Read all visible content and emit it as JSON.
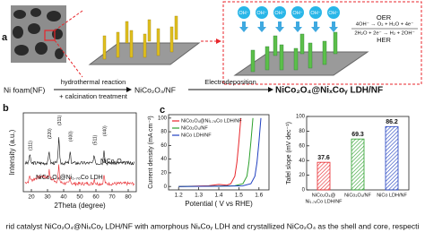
{
  "panel_a": {
    "label": "a",
    "ni_foam": "Ni foam(NF)",
    "step1_line1": "hydrothermal reaction",
    "step1_line2": "+ calcination treatment",
    "intermediate": "NiCo₂O₄/NF",
    "step2": "Electrodeposition",
    "product": "NiCo₂O₄@NiₓCoᵧ LDH/NF",
    "oer": "OER",
    "oer_eq": "4OH⁻ → O₂ + H₂O + 4e⁻",
    "her": "HER",
    "her_eq": "2H₂O + 2e⁻ → H₂ + 2OH⁻",
    "ions": [
      "OH⁻",
      "OH⁻",
      "OH⁻",
      "OH⁻",
      "OH⁻",
      "OH⁻"
    ]
  },
  "panel_b": {
    "label": "b",
    "y_label": "Intensity (a.u.)",
    "x_label": "2Theta (degree)",
    "xlim": [
      15,
      85
    ],
    "xticks": [
      20,
      30,
      40,
      50,
      60,
      70,
      80
    ],
    "peaks": [
      "(111)",
      "(220)",
      "(311)",
      "(400)",
      "(511)",
      "(440)"
    ],
    "series": [
      "NiCo₂O₄",
      "NiCo₂O₄@Ni₁.₇₆Co LDH"
    ],
    "colors": [
      "#111111",
      "#e8262b"
    ]
  },
  "panel_c": {
    "label": "c",
    "lsv": {
      "type": "line",
      "y_label": "Current density (mA cm⁻²)",
      "x_label": "Potential ( V vs RHE)",
      "xlim": [
        1.15,
        1.65
      ],
      "ylim": [
        -5,
        105
      ],
      "xticks": [
        1.2,
        1.3,
        1.4,
        1.5,
        1.6
      ],
      "yticks": [
        0,
        20,
        40,
        60,
        80,
        100
      ],
      "series": [
        {
          "name": "NiCo₂O₄@Ni₁.₇₆Co LDH/NF",
          "color": "#e8262b",
          "x": [
            1.2,
            1.35,
            1.4,
            1.44,
            1.46,
            1.48,
            1.49,
            1.5,
            1.51
          ],
          "y": [
            0,
            1,
            3,
            2,
            4,
            15,
            35,
            65,
            100
          ]
        },
        {
          "name": "NiCo₂O₄/NF",
          "color": "#2ca02c",
          "x": [
            1.2,
            1.4,
            1.48,
            1.52,
            1.54,
            1.55,
            1.56,
            1.57
          ],
          "y": [
            0,
            0.5,
            1,
            4,
            15,
            35,
            65,
            100
          ]
        },
        {
          "name": "NiCo LDH/NF",
          "color": "#2040c0",
          "x": [
            1.2,
            1.45,
            1.52,
            1.56,
            1.58,
            1.59,
            1.6,
            1.61
          ],
          "y": [
            0,
            0.5,
            1,
            4,
            15,
            35,
            65,
            100
          ]
        }
      ]
    },
    "tafel": {
      "type": "bar",
      "y_label": "Tafel slope (mV dec⁻¹)",
      "ylim": [
        0,
        100
      ],
      "yticks": [
        0,
        20,
        40,
        60,
        80,
        100
      ],
      "categories": [
        [
          "NiCo₂O₄@",
          "Ni₁.₇₆Co LDH/NF"
        ],
        [
          "NiCo₂O₄/NF"
        ],
        [
          "NiCo LDH/NF"
        ]
      ],
      "values": [
        37.6,
        69.3,
        86.2
      ],
      "colors": [
        "#e8262b",
        "#2ca02c",
        "#2040c0"
      ]
    }
  },
  "caption": "rid catalyst NiCo₂O₄@NiₓCoᵧ LDH/NF with amorphous NiₓCoᵧ LDH and crystallized NiCo₂O₄ as the shell and core, respecti"
}
